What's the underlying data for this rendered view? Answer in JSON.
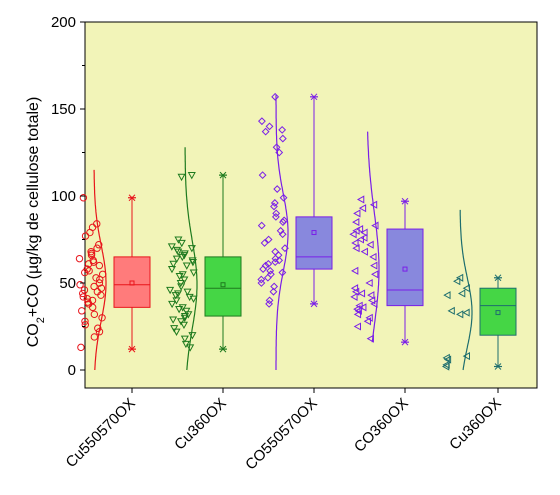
{
  "chart_data": {
    "type": "box",
    "title": "",
    "xlabel": "",
    "ylabel": {
      "prefix": "CO",
      "subscript": "2",
      "rest": "+CO (µg/kg de cellulose totale)"
    },
    "ylim": [
      0,
      200
    ],
    "yticks": [
      0,
      50,
      100,
      150,
      200
    ],
    "grid": false,
    "colors": {
      "plot_background": "#f2f4b8",
      "axis": "#000000"
    },
    "categories": [
      "Cu550570OX",
      "Cu360OX",
      "CO550570OX",
      "CO360OX",
      "Cu360OX"
    ],
    "series": [
      {
        "category": "Cu550570OX",
        "color": "#e8151b",
        "fill": "#ff7b7b",
        "marker": "circle",
        "whisker_low": 12,
        "q1": 36,
        "median": 49,
        "q3": 65,
        "whisker_high": 99,
        "mean": 50,
        "curve_range": [
          0,
          115
        ],
        "points": [
          99,
          84,
          82,
          79,
          77,
          72,
          70,
          68,
          67,
          66,
          64,
          63,
          62,
          61,
          60,
          58,
          57,
          56,
          55,
          53,
          52,
          50,
          49,
          48,
          47,
          46,
          45,
          44,
          43,
          42,
          41,
          40,
          39,
          38,
          36,
          34,
          32,
          30,
          28,
          26,
          24,
          22,
          19,
          13
        ]
      },
      {
        "category": "Cu360OX",
        "color": "#1e7a1e",
        "fill": "#45d645",
        "marker": "triangle-down",
        "whisker_low": 12,
        "q1": 31,
        "median": 47,
        "q3": 65,
        "whisker_high": 112,
        "mean": 49,
        "curve_range": [
          0,
          128
        ],
        "points": [
          112,
          111,
          75,
          73,
          71,
          70,
          69,
          68,
          67,
          66,
          65,
          64,
          63,
          62,
          61,
          60,
          58,
          56,
          55,
          54,
          52,
          50,
          48,
          46,
          45,
          44,
          43,
          42,
          41,
          40,
          38,
          36,
          35,
          34,
          32,
          31,
          30,
          29,
          28,
          26,
          24,
          22,
          20,
          18,
          15,
          13
        ]
      },
      {
        "category": "CO550570OX",
        "color": "#7a1ee8",
        "fill": "#8888dd",
        "marker": "diamond",
        "whisker_low": 38,
        "q1": 58,
        "median": 65,
        "q3": 88,
        "whisker_high": 157,
        "mean": 79,
        "curve_range": [
          0,
          158
        ],
        "points": [
          157,
          143,
          140,
          138,
          137,
          133,
          128,
          125,
          112,
          104,
          99,
          96,
          94,
          90,
          88,
          86,
          85,
          83,
          80,
          78,
          75,
          73,
          70,
          68,
          66,
          64,
          63,
          62,
          61,
          60,
          58,
          57,
          56,
          55,
          53,
          52,
          50,
          48,
          45,
          40,
          38
        ]
      },
      {
        "category": "CO360OX",
        "color": "#7a1ee8",
        "fill": "#8888dd",
        "marker": "triangle-left",
        "whisker_low": 16,
        "q1": 37,
        "median": 46,
        "q3": 81,
        "whisker_high": 97,
        "mean": 58,
        "curve_range": [
          16,
          137
        ],
        "points": [
          98,
          95,
          93,
          90,
          85,
          83,
          81,
          80,
          79,
          78,
          76,
          75,
          73,
          72,
          70,
          68,
          65,
          60,
          57,
          55,
          50,
          47,
          45,
          44,
          43,
          42,
          40,
          38,
          37,
          36,
          35,
          34,
          32,
          30,
          28,
          25,
          18
        ]
      },
      {
        "category": "Cu360OX",
        "color": "#1e6e6e",
        "fill": "#45d645",
        "marker": "triangle-left",
        "whisker_low": 2,
        "q1": 20,
        "median": 37,
        "q3": 47,
        "whisker_high": 53,
        "mean": 33,
        "curve_range": [
          0,
          92
        ],
        "points": [
          53,
          51,
          47,
          44,
          43,
          34,
          33,
          32,
          8,
          7,
          6,
          3,
          2
        ]
      }
    ]
  }
}
